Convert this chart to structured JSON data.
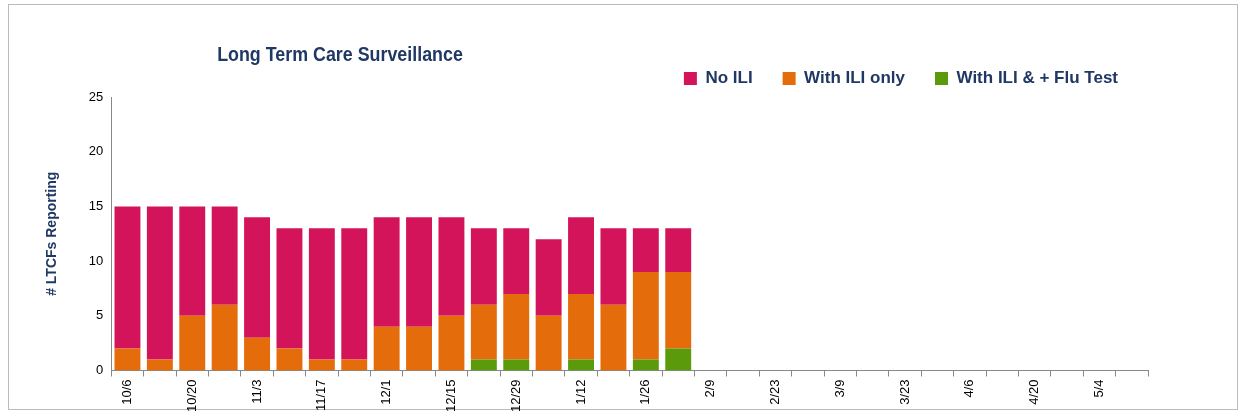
{
  "chart_data": {
    "type": "bar",
    "title": "Long Term Care Surveillance",
    "ylabel": "# LTCFs Reporting",
    "stacked": true,
    "legend": "top right",
    "grid": false,
    "categories": [
      "10/6",
      null,
      "10/20",
      null,
      "11/3",
      null,
      "11/17",
      null,
      "12/1",
      null,
      "12/15",
      null,
      "12/29",
      null,
      "1/12",
      null,
      "1/26",
      null,
      "2/9",
      null,
      "2/23",
      null,
      "3/9",
      null,
      "3/23",
      null,
      "4/6",
      null,
      "4/20",
      null,
      "5/4",
      null
    ],
    "series": [
      {
        "name": "With ILI & + Flu Test",
        "color": "#5b9a0a",
        "values": [
          0,
          0,
          0,
          0,
          0,
          0,
          0,
          0,
          0,
          0,
          0,
          1,
          1,
          0,
          1,
          0,
          1,
          2,
          null,
          null,
          null,
          null,
          null,
          null,
          null,
          null,
          null,
          null,
          null,
          null,
          null,
          null
        ]
      },
      {
        "name": "With ILI only",
        "color": "#e46c0a",
        "values": [
          2,
          1,
          5,
          6,
          3,
          2,
          1,
          1,
          4,
          4,
          5,
          5,
          6,
          5,
          6,
          6,
          8,
          7,
          null,
          null,
          null,
          null,
          null,
          null,
          null,
          null,
          null,
          null,
          null,
          null,
          null,
          null
        ]
      },
      {
        "name": "No ILI",
        "color": "#d4145a",
        "values": [
          13,
          14,
          10,
          9,
          11,
          11,
          12,
          12,
          10,
          10,
          9,
          7,
          6,
          7,
          7,
          7,
          4,
          4,
          null,
          null,
          null,
          null,
          null,
          null,
          null,
          null,
          null,
          null,
          null,
          null,
          null,
          null
        ]
      }
    ],
    "ylim": [
      0,
      25
    ],
    "yticks": [
      0,
      5,
      10,
      15,
      20,
      25
    ]
  }
}
